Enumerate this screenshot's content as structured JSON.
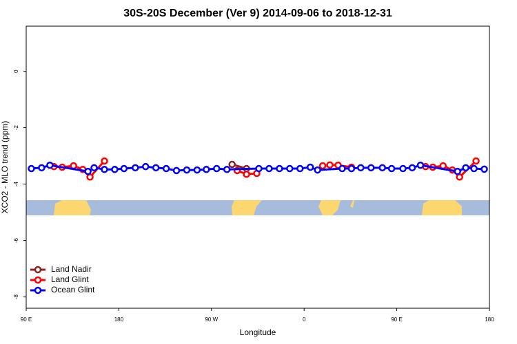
{
  "chart_data": {
    "type": "line",
    "title": "30S-20S December (Ver 9)   2014-09-06 to 2018-12-31",
    "x_label": "Longitude",
    "y_label": "XCO2 - MLO trend (ppm)",
    "xlim": [
      90,
      540
    ],
    "xticks": [
      {
        "value": 90,
        "label": "90 E"
      },
      180,
      {
        "value": 270,
        "label": "90 W"
      },
      {
        "value": 360,
        "label": "0"
      },
      {
        "value": 450,
        "label": "90 E"
      },
      {
        "value": 540,
        "label": "180"
      }
    ],
    "ylim": [
      -8.4,
      1.6
    ],
    "yticks": [
      0,
      -2,
      -4,
      -6,
      -8
    ],
    "legend": "bottom-left",
    "series": [
      {
        "name": "Land Nadir",
        "color": "#8b2323",
        "x": [
          290,
          304
        ],
        "values": [
          -3.3,
          -3.45
        ]
      },
      {
        "name": "Land Glint",
        "color": "#ff0000",
        "x": [
          117,
          125,
          136,
          145,
          152,
          166,
          null,
          295,
          304,
          314,
          null,
          378,
          385,
          393,
          406,
          null,
          478,
          485,
          495,
          504,
          511,
          527
        ],
        "values": [
          -3.38,
          -3.4,
          -3.35,
          -3.48,
          -3.75,
          -3.18,
          null,
          -3.52,
          -3.65,
          -3.62,
          null,
          -3.35,
          -3.32,
          -3.33,
          -3.4,
          null,
          -3.38,
          -3.4,
          -3.35,
          -3.5,
          -3.75,
          -3.18
        ]
      },
      {
        "name": "Ocean Glint",
        "color": "#0000ff",
        "x": [
          95,
          105,
          113,
          150,
          156,
          166,
          176,
          185,
          196,
          206,
          216,
          226,
          236,
          246,
          256,
          265,
          275,
          285,
          316,
          326,
          336,
          346,
          356,
          366,
          373,
          397,
          406,
          415,
          425,
          436,
          445,
          456,
          465,
          473,
          509,
          517,
          525,
          535
        ],
        "values": [
          -3.45,
          -3.42,
          -3.33,
          -3.55,
          -3.42,
          -3.48,
          -3.48,
          -3.45,
          -3.42,
          -3.38,
          -3.42,
          -3.45,
          -3.52,
          -3.5,
          -3.5,
          -3.48,
          -3.45,
          -3.48,
          -3.45,
          -3.45,
          -3.45,
          -3.45,
          -3.45,
          -3.4,
          -3.5,
          -3.45,
          -3.45,
          -3.42,
          -3.42,
          -3.42,
          -3.45,
          -3.45,
          -3.42,
          -3.33,
          -3.55,
          -3.42,
          -3.45,
          -3.47
        ]
      }
    ]
  }
}
